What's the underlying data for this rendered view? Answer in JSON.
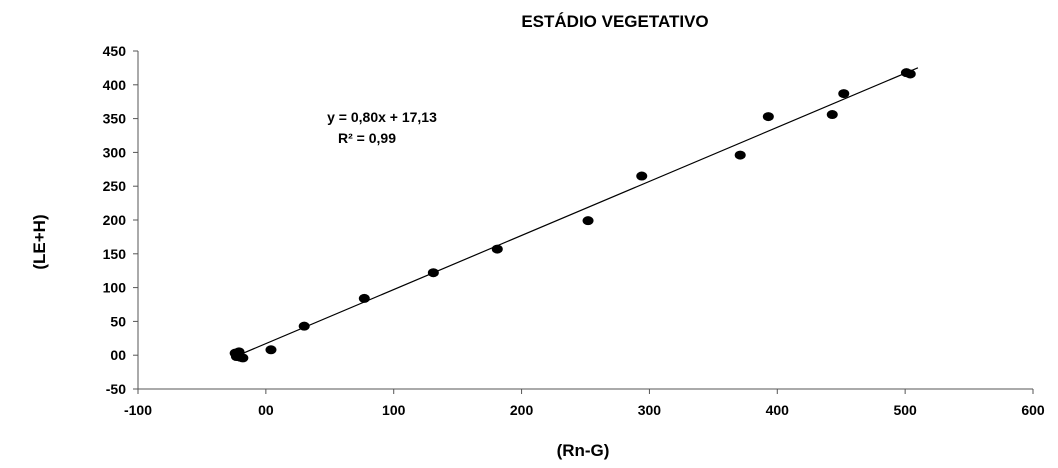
{
  "chart_data": {
    "type": "scatter",
    "title": "ESTÁDIO VEGETATIVO",
    "xlabel": "(Rn-G)",
    "ylabel": "(LE+H)",
    "xlim": [
      -100,
      600
    ],
    "ylim": [
      -50,
      450
    ],
    "x_ticks": [
      -100,
      0,
      100,
      200,
      300,
      400,
      500,
      600
    ],
    "x_tick_labels": [
      "-100",
      "00",
      "100",
      "200",
      "300",
      "400",
      "500",
      "600"
    ],
    "y_ticks": [
      -50,
      0,
      50,
      100,
      150,
      200,
      250,
      300,
      350,
      400,
      450
    ],
    "y_tick_labels": [
      "-50",
      "00",
      "50",
      "100",
      "150",
      "200",
      "250",
      "300",
      "350",
      "400",
      "450"
    ],
    "grid": false,
    "legend": "none",
    "series": [
      {
        "x": [
          -24,
          -22,
          -20,
          -18,
          -23,
          -21,
          4,
          30,
          77,
          131,
          181,
          252,
          294,
          371,
          393,
          443,
          452,
          501,
          504
        ],
        "y": [
          3,
          1,
          -3,
          -4,
          -2,
          5,
          8,
          43,
          84,
          122,
          157,
          199,
          265,
          296,
          353,
          356,
          387,
          418,
          416
        ]
      }
    ],
    "trendline": {
      "slope": 0.8,
      "intercept": 17.13,
      "x_range": [
        -20,
        510
      ]
    },
    "annotations": {
      "equation": "y = 0,80x + 17,13",
      "r_squared": "R² = 0,99"
    },
    "colors": {
      "points": "#000000",
      "line": "#000000",
      "axis": "#555555"
    }
  }
}
